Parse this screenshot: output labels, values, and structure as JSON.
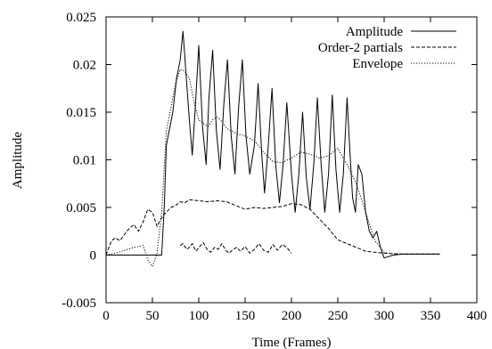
{
  "chart_data": {
    "type": "line",
    "title": "",
    "xlabel": "Time (Frames)",
    "ylabel": "Amplitude",
    "xlim": [
      0,
      400
    ],
    "ylim": [
      -0.005,
      0.025
    ],
    "x_ticks": [
      0,
      50,
      100,
      150,
      200,
      250,
      300,
      350,
      400
    ],
    "x_tick_labels": [
      "0",
      "50",
      "100",
      "150",
      "200",
      "250",
      "300",
      "350",
      "400"
    ],
    "y_ticks": [
      -0.005,
      0,
      0.005,
      0.01,
      0.015,
      0.02,
      0.025
    ],
    "y_tick_labels": [
      "-0.005",
      "0",
      "0.005",
      "0.01",
      "0.015",
      "0.02",
      "0.025"
    ],
    "grid": false,
    "legend_position": "top-right",
    "series": [
      {
        "name": "Amplitude",
        "style": "solid",
        "x": [
          0,
          60,
          63,
          65,
          68,
          72,
          76,
          80,
          83,
          87,
          90,
          93,
          96,
          100,
          104,
          108,
          111,
          115,
          119,
          123,
          127,
          131,
          135,
          139,
          143,
          147,
          151,
          155,
          160,
          164,
          168,
          171,
          175,
          179,
          183,
          187,
          191,
          195,
          200,
          204,
          208,
          212,
          216,
          220,
          224,
          228,
          232,
          236,
          240,
          244,
          248,
          252,
          256,
          260,
          263,
          266,
          269,
          272,
          276,
          280,
          284,
          288,
          292,
          296,
          300,
          310,
          320,
          340,
          360
        ],
        "y": [
          0,
          0,
          0.0055,
          0.0115,
          0.013,
          0.015,
          0.0185,
          0.0205,
          0.0235,
          0.018,
          0.014,
          0.0105,
          0.015,
          0.022,
          0.0135,
          0.0095,
          0.0165,
          0.0215,
          0.013,
          0.009,
          0.0158,
          0.0205,
          0.0125,
          0.0085,
          0.0155,
          0.0205,
          0.0125,
          0.0085,
          0.0115,
          0.018,
          0.0105,
          0.0065,
          0.0115,
          0.0175,
          0.0095,
          0.0055,
          0.0095,
          0.016,
          0.0085,
          0.0045,
          0.0085,
          0.015,
          0.0082,
          0.0048,
          0.0095,
          0.0165,
          0.0095,
          0.0045,
          0.0085,
          0.0168,
          0.009,
          0.0045,
          0.0085,
          0.0165,
          0.011,
          0.006,
          0.0045,
          0.0095,
          0.0085,
          0.0045,
          0.0025,
          0.0018,
          0.0025,
          0.0008,
          -0.0003,
          0,
          0.0001,
          0.0001,
          0.0001
        ]
      },
      {
        "name": "Order-2 partials",
        "style": "dashed",
        "x": [
          0,
          3,
          6,
          10,
          15,
          20,
          25,
          30,
          35,
          40,
          45,
          50,
          55,
          58,
          62,
          66,
          70,
          75,
          80,
          85,
          90,
          100,
          110,
          120,
          130,
          140,
          150,
          160,
          170,
          180,
          190,
          200,
          210,
          220,
          230,
          240,
          250,
          260,
          270,
          280,
          290,
          300,
          320,
          340,
          360
        ],
        "y": [
          0,
          0.0008,
          0.0015,
          0.0018,
          0.0015,
          0.0022,
          0.0028,
          0.0032,
          0.0025,
          0.0035,
          0.0048,
          0.0045,
          0.003,
          0.0036,
          0.0042,
          0.0046,
          0.005,
          0.0052,
          0.0056,
          0.0055,
          0.0058,
          0.0057,
          0.0056,
          0.0057,
          0.0056,
          0.0052,
          0.0048,
          0.005,
          0.0049,
          0.005,
          0.0051,
          0.0054,
          0.0053,
          0.0048,
          0.0038,
          0.0028,
          0.0016,
          0.0012,
          0.0008,
          0.0004,
          0.0003,
          0.0002,
          0.0001,
          0.0001,
          0.0001
        ]
      },
      {
        "name": "Order-2 partials",
        "style": "dashed",
        "legend": false,
        "x": [
          80,
          83,
          87,
          90,
          93,
          97,
          101,
          105,
          109,
          113,
          117,
          121,
          125,
          129,
          133,
          137,
          141,
          145,
          150,
          155,
          160,
          165,
          170,
          175,
          180,
          185,
          190,
          195,
          200
        ],
        "y": [
          0.001,
          0.0012,
          0.0006,
          0.0008,
          0.0012,
          0.0004,
          0.0009,
          0.0013,
          0.0006,
          0.0003,
          0.0008,
          0.0006,
          0.0012,
          0.0005,
          0.0002,
          0.0006,
          0.0008,
          0.0004,
          0.0009,
          0.0002,
          0.0006,
          0.0012,
          0.0005,
          0.0003,
          0.0011,
          0.0005,
          0.0011,
          0.0008,
          0.0002
        ]
      },
      {
        "name": "Envelope",
        "style": "dotted",
        "x": [
          0,
          10,
          20,
          30,
          40,
          45,
          50,
          55,
          60,
          65,
          70,
          75,
          80,
          85,
          90,
          95,
          100,
          105,
          110,
          115,
          120,
          125,
          130,
          140,
          150,
          160,
          170,
          180,
          190,
          200,
          210,
          220,
          230,
          240,
          250,
          260,
          270,
          280,
          290,
          300,
          310,
          320,
          340,
          360
        ],
        "y": [
          0,
          0.0002,
          0.0005,
          0.0008,
          0.001,
          -0.0005,
          -0.0012,
          0.0002,
          0.0045,
          0.013,
          0.0155,
          0.018,
          0.0195,
          0.0193,
          0.0185,
          0.016,
          0.0142,
          0.0138,
          0.0135,
          0.0142,
          0.0145,
          0.014,
          0.0133,
          0.0128,
          0.0125,
          0.012,
          0.0108,
          0.0098,
          0.0097,
          0.0102,
          0.0108,
          0.0106,
          0.0102,
          0.0104,
          0.0112,
          0.0095,
          0.0075,
          0.0045,
          0.0015,
          0.0003,
          0.0001,
          0.0001,
          0.0001,
          0.0001
        ]
      }
    ]
  }
}
